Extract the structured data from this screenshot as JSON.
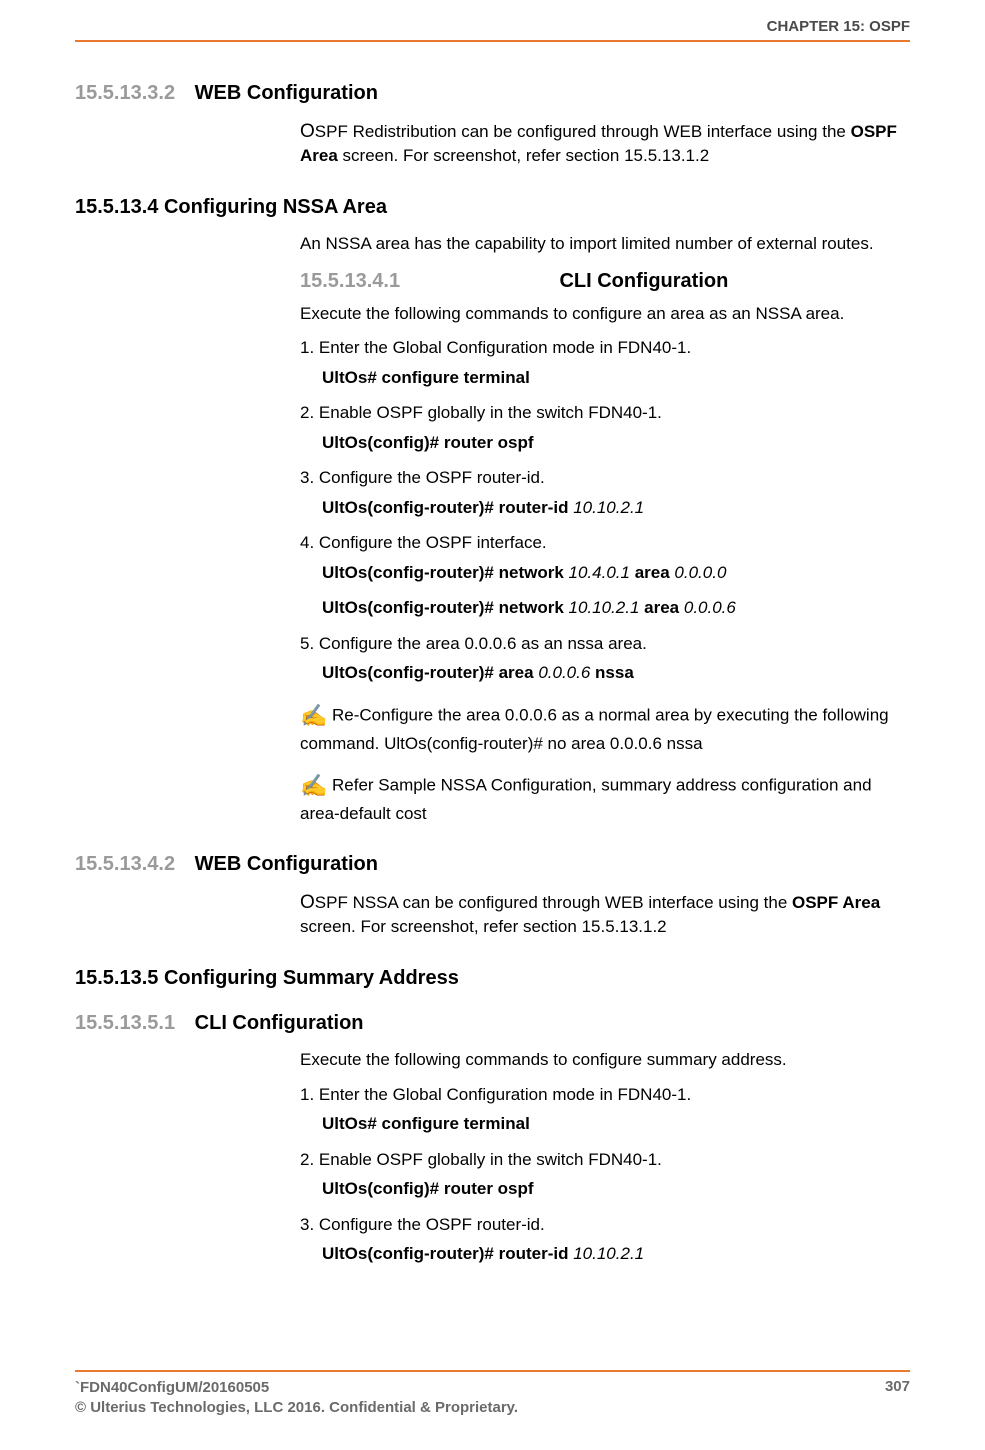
{
  "header": {
    "chapter": "CHAPTER 15: OSPF"
  },
  "colors": {
    "rule": "#e8792f",
    "secnum": "#9a9a9a",
    "bodytext": "#000000",
    "footer": "#6a6a6a",
    "header": "#4a4a4a"
  },
  "sections": {
    "s15_5_13_3_2": {
      "num": "15.5.13.3.2",
      "title": "WEB Configuration",
      "para_lead": "O",
      "para_rest": "SPF Redistribution can be configured through WEB interface using the ",
      "para_bold": "OSPF Area",
      "para_tail": " screen. For screenshot, refer section 15.5.13.1.2"
    },
    "s15_5_13_4": {
      "num": "15.5.13.4",
      "title": "Configuring NSSA Area",
      "intro": "An NSSA area has the capability to import limited number of external routes."
    },
    "s15_5_13_4_1": {
      "num": "15.5.13.4.1",
      "title": "CLI Configuration",
      "intro": "Execute the following commands to configure an area as an NSSA area.",
      "steps": [
        {
          "text": "1. Enter the Global Configuration mode in FDN40-1.",
          "cmd_parts": [
            {
              "t": "UltOs# configure terminal",
              "k": "b"
            }
          ]
        },
        {
          "text": "2. Enable OSPF globally in the switch FDN40-1.",
          "cmd_parts": [
            {
              "t": "UltOs(config)# router ospf",
              "k": "b"
            }
          ]
        },
        {
          "text": "3. Configure the OSPF router-id.",
          "cmd_parts": [
            {
              "t": "UltOs(config-router)# router-id ",
              "k": "b"
            },
            {
              "t": "10.10.2.1",
              "k": "i"
            }
          ]
        },
        {
          "text": "4. Configure the OSPF interface.",
          "cmd_parts": [
            {
              "t": "UltOs(config-router)# network ",
              "k": "b"
            },
            {
              "t": "10.4.0.1",
              "k": "i"
            },
            {
              "t": " area ",
              "k": "b"
            },
            {
              "t": "0.0.0.0",
              "k": "i"
            }
          ],
          "cmd2_parts": [
            {
              "t": "UltOs(config-router)# network ",
              "k": "b"
            },
            {
              "t": "10.10.2.1",
              "k": "i"
            },
            {
              "t": " area ",
              "k": "b"
            },
            {
              "t": "0.0.0.6",
              "k": "i"
            }
          ]
        },
        {
          "text": "5. Configure the area 0.0.0.6 as an nssa area.",
          "cmd_parts": [
            {
              "t": "UltOs(config-router)# area ",
              "k": "b"
            },
            {
              "t": "0.0.0.6",
              "k": "i"
            },
            {
              "t": " nssa",
              "k": "b"
            }
          ]
        }
      ],
      "notes": [
        {
          "pre": "Re-Configure the area 0.0.0.6 as a normal area by executing the following command. ",
          "cmd_parts": [
            {
              "t": "UltOs(config-router)# no area ",
              "k": "b"
            },
            {
              "t": "0.0.0.6",
              "k": "i"
            },
            {
              "t": " nssa",
              "k": "b"
            }
          ]
        },
        {
          "pre": "Refer Sample NSSA Configuration, summary address configuration and area-default cost"
        }
      ]
    },
    "s15_5_13_4_2": {
      "num": "15.5.13.4.2",
      "title": "WEB Configuration",
      "para_lead": "O",
      "para_rest": "SPF NSSA can be configured through WEB interface using the ",
      "para_bold": "OSPF Area",
      "para_tail": " screen. For screenshot, refer section 15.5.13.1.2"
    },
    "s15_5_13_5": {
      "num": "15.5.13.5",
      "title": "Configuring Summary Address"
    },
    "s15_5_13_5_1": {
      "num": "15.5.13.5.1",
      "title": "CLI Configuration",
      "intro": "Execute the following commands to configure summary address.",
      "steps": [
        {
          "text": "1. Enter the Global Configuration mode in FDN40-1.",
          "cmd_parts": [
            {
              "t": "UltOs# configure terminal",
              "k": "b"
            }
          ]
        },
        {
          "text": "2. Enable OSPF globally in the switch FDN40-1.",
          "cmd_parts": [
            {
              "t": "UltOs(config)# router ospf",
              "k": "b"
            }
          ]
        },
        {
          "text": "3. Configure the OSPF router-id.",
          "cmd_parts": [
            {
              "t": "UltOs(config-router)# router-id ",
              "k": "b"
            },
            {
              "t": "10.10.2.1",
              "k": "i"
            }
          ]
        }
      ]
    }
  },
  "footer": {
    "left1": "`FDN40ConfigUM/20160505",
    "left2": "© Ulterius Technologies, LLC 2016. Confidential & Proprietary.",
    "pagenum": "307"
  }
}
